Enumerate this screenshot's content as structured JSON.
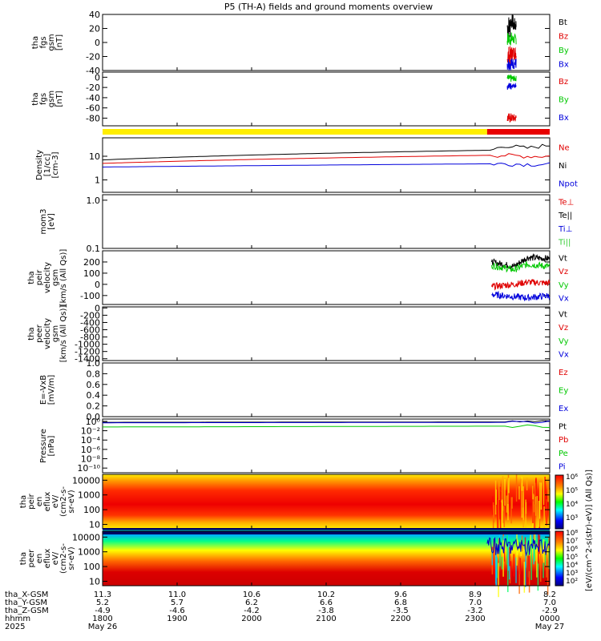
{
  "title": "P5 (TH-A) fields and ground moments overview",
  "colors": {
    "black": "#000000",
    "red": "#e00000",
    "green": "#00c800",
    "blue": "#0000dc",
    "yellow": "#ffee00",
    "barRed": "#e80000",
    "lightGreen": "#33cc33"
  },
  "chart_data": [
    {
      "type": "line",
      "ylabel": [
        "tha",
        "fgs",
        "gsm",
        "[nT]"
      ],
      "yticks": [
        "40",
        "20",
        "0",
        "-20",
        "-40"
      ],
      "ylim": [
        -40,
        40
      ],
      "legend": [
        {
          "name": "Bt",
          "color": "#000000"
        },
        {
          "name": "Bz",
          "color": "#e00000"
        },
        {
          "name": "By",
          "color": "#00c800"
        },
        {
          "name": "Bx",
          "color": "#0000dc"
        }
      ],
      "series": [
        {
          "name": "Bt",
          "xrange": [
            0.905,
            0.925
          ],
          "y": [
            [
              5,
              40
            ],
            [
              20,
              40
            ],
            [
              15,
              35
            ]
          ]
        },
        {
          "name": "By",
          "xrange": [
            0.905,
            0.925
          ],
          "y": [
            [
              -5,
              15
            ],
            [
              -3,
              12
            ]
          ]
        },
        {
          "name": "Bz",
          "xrange": [
            0.905,
            0.925
          ],
          "y": [
            [
              -35,
              -5
            ],
            [
              -25,
              -5
            ]
          ]
        },
        {
          "name": "Bx",
          "xrange": [
            0.905,
            0.925
          ],
          "y": [
            [
              -40,
              -20
            ],
            [
              -38,
              -22
            ]
          ]
        }
      ]
    },
    {
      "type": "line",
      "ylabel": [
        "tha",
        "fgs",
        "gsm",
        "[nT]"
      ],
      "yticks": [
        "0",
        "-20",
        "-40",
        "-60",
        "-80"
      ],
      "ylim": [
        -95,
        10
      ],
      "legend": [
        {
          "name": "Bz",
          "color": "#e00000"
        },
        {
          "name": "By",
          "color": "#00c800"
        },
        {
          "name": "Bx",
          "color": "#0000dc"
        }
      ],
      "series": [
        {
          "name": "By",
          "xrange": [
            0.905,
            0.925
          ],
          "y": [
            [
              -10,
              5
            ],
            [
              -8,
              3
            ]
          ]
        },
        {
          "name": "Bx",
          "xrange": [
            0.905,
            0.925
          ],
          "y": [
            [
              -25,
              -10
            ],
            [
              -20,
              -12
            ]
          ]
        },
        {
          "name": "Bz",
          "xrange": [
            0.905,
            0.925
          ],
          "y": [
            [
              -90,
              -70
            ],
            [
              -88,
              -72
            ]
          ]
        }
      ]
    },
    {
      "type": "bar",
      "segments": [
        {
          "from": 0,
          "to": 0.86,
          "color": "#ffee00"
        },
        {
          "from": 0.86,
          "to": 1,
          "color": "#e80000"
        }
      ]
    },
    {
      "type": "line",
      "scale": "log",
      "ylabel": [
        "Density",
        "[1/cc]",
        "[cm-3]"
      ],
      "yticks": [
        "10",
        "1"
      ],
      "ylim": [
        0.3,
        60
      ],
      "legend": [
        {
          "name": "Ne",
          "color": "#e00000"
        },
        {
          "name": "Ni",
          "color": "#000000"
        },
        {
          "name": "Npot",
          "color": "#0000dc"
        }
      ],
      "series": [
        {
          "name": "Ni",
          "x": [
            0,
            0.87,
            0.9,
            0.95,
            1.0
          ],
          "y": [
            7,
            18,
            28,
            22,
            30
          ]
        },
        {
          "name": "Ne",
          "x": [
            0,
            0.87,
            0.9,
            0.95,
            1.0
          ],
          "y": [
            5,
            11,
            11,
            10,
            10
          ]
        },
        {
          "name": "Npot",
          "x": [
            0,
            0.87,
            0.9,
            0.95,
            1.0
          ],
          "y": [
            3.5,
            4.8,
            4.8,
            4.6,
            4.5
          ]
        }
      ]
    },
    {
      "type": "line",
      "scale": "log",
      "ylabel": [
        "mom3",
        "[eV]"
      ],
      "yticks": [
        "1.0",
        "0.1"
      ],
      "ylim": [
        0.1,
        1.3
      ],
      "legend": [
        {
          "name": "Te⊥",
          "color": "#e00000"
        },
        {
          "name": "Te||",
          "color": "#000000"
        },
        {
          "name": "Ti⊥",
          "color": "#0000dc"
        },
        {
          "name": "Ti||",
          "color": "#33cc33"
        }
      ],
      "series": []
    },
    {
      "type": "line",
      "ylabel": [
        "tha",
        "peir",
        "velocity",
        "gsm",
        "[km/s (All Qs)]"
      ],
      "yticks": [
        "200",
        "100",
        "0",
        "-100"
      ],
      "ylim": [
        -180,
        300
      ],
      "legend": [
        {
          "name": "Vt",
          "color": "#000000"
        },
        {
          "name": "Vz",
          "color": "#e00000"
        },
        {
          "name": "Vy",
          "color": "#00c800"
        },
        {
          "name": "Vx",
          "color": "#0000dc"
        }
      ],
      "series": [
        {
          "name": "Vt",
          "x": [
            0.87,
            0.92,
            0.95,
            1.0
          ],
          "y": [
            200,
            160,
            240,
            230
          ]
        },
        {
          "name": "Vy",
          "x": [
            0.87,
            0.92,
            0.95,
            1.0
          ],
          "y": [
            170,
            130,
            180,
            160
          ]
        },
        {
          "name": "Vz",
          "x": [
            0.87,
            0.92,
            0.95,
            1.0
          ],
          "y": [
            -20,
            0,
            20,
            10
          ]
        },
        {
          "name": "Vx",
          "x": [
            0.87,
            0.92,
            0.95,
            1.0
          ],
          "y": [
            -90,
            -110,
            -120,
            -100
          ]
        }
      ]
    },
    {
      "type": "line",
      "ylabel": [
        "tha",
        "peer",
        "velocity",
        "gsm",
        "[km/s (All Qs)]"
      ],
      "yticks": [
        "0",
        "-200",
        "-400",
        "-600",
        "-800",
        "-1000",
        "-1200",
        "-1400"
      ],
      "ylim": [
        -1450,
        30
      ],
      "legend": [
        {
          "name": "Vt",
          "color": "#000000"
        },
        {
          "name": "Vz",
          "color": "#e00000"
        },
        {
          "name": "Vy",
          "color": "#00c800"
        },
        {
          "name": "Vx",
          "color": "#0000dc"
        }
      ],
      "series": []
    },
    {
      "type": "line",
      "ylabel": [
        "E=-VxB",
        "[mV/m]"
      ],
      "yticks": [
        "1.0",
        "0.8",
        "0.6",
        "0.4",
        "0.2",
        "0.0"
      ],
      "ylim": [
        0,
        1.0
      ],
      "legend": [
        {
          "name": "Ez",
          "color": "#e00000"
        },
        {
          "name": "Ey",
          "color": "#00c800"
        },
        {
          "name": "Ex",
          "color": "#0000dc"
        }
      ],
      "series": []
    },
    {
      "type": "line",
      "scale": "log",
      "ylabel": [
        "Pressure",
        "[nPa]"
      ],
      "yticks": [
        "10⁰",
        "10⁻²",
        "10⁻⁴",
        "10⁻⁶",
        "10⁻⁸",
        "10⁻¹⁰"
      ],
      "ylim_exp": [
        -11,
        0.5
      ],
      "legend": [
        {
          "name": "Pt",
          "color": "#000000"
        },
        {
          "name": "Pb",
          "color": "#e00000"
        },
        {
          "name": "Pe",
          "color": "#00c800"
        },
        {
          "name": "Pi",
          "color": "#0000dc"
        }
      ],
      "series": [
        {
          "name": "Pt",
          "x": [
            0,
            1
          ],
          "y_exp": [
            -0.2,
            -0.1
          ]
        },
        {
          "name": "Pi",
          "x": [
            0,
            1
          ],
          "y_exp": [
            -0.3,
            -0.2
          ]
        },
        {
          "name": "Pe",
          "x": [
            0,
            1
          ],
          "y_exp": [
            -1.2,
            -1.0
          ]
        }
      ]
    },
    {
      "type": "heatmap",
      "ylabel": [
        "tha",
        "peir",
        "en",
        "eflux",
        "eV/",
        "(cm2-s-",
        "sr-eV)"
      ],
      "yticks": [
        "10000",
        "1000",
        "100",
        "10"
      ],
      "ylim": [
        5,
        25000
      ]
    },
    {
      "type": "heatmap",
      "ylabel": [
        "tha",
        "peer",
        "en",
        "eflux",
        "eV/",
        "(cm2-s-",
        "sr-eV)"
      ],
      "yticks": [
        "10000",
        "1000",
        "100",
        "10"
      ],
      "ylim": [
        5,
        25000
      ]
    }
  ],
  "colorbar": {
    "label": "[eV/(cm^2-s(str)-eV)] (All Qs)]",
    "upper_ticks": [
      "10⁶",
      "10⁵",
      "10⁴",
      "10³"
    ],
    "lower_ticks": [
      "10⁸",
      "10⁷",
      "10⁶",
      "10⁵",
      "10⁴",
      "10³",
      "10²"
    ]
  },
  "xaxis": {
    "rows": [
      {
        "label": "tha_X-GSM",
        "values": [
          "11.3",
          "11.0",
          "10.6",
          "10.2",
          "9.6",
          "8.9",
          "8.2"
        ]
      },
      {
        "label": "tha_Y-GSM",
        "values": [
          "5.2",
          "5.7",
          "6.2",
          "6.6",
          "6.8",
          "7.0",
          "7.0"
        ]
      },
      {
        "label": "tha_Z-GSM",
        "values": [
          "-4.9",
          "-4.6",
          "-4.2",
          "-3.8",
          "-3.5",
          "-3.2",
          "-2.9"
        ]
      },
      {
        "label": "hhmm",
        "values": [
          "1800",
          "1900",
          "2000",
          "2100",
          "2200",
          "2300",
          "0000"
        ]
      },
      {
        "label": "2025",
        "values": [
          "May 26",
          "",
          "",
          "",
          "",
          "",
          "May 27"
        ]
      }
    ]
  }
}
